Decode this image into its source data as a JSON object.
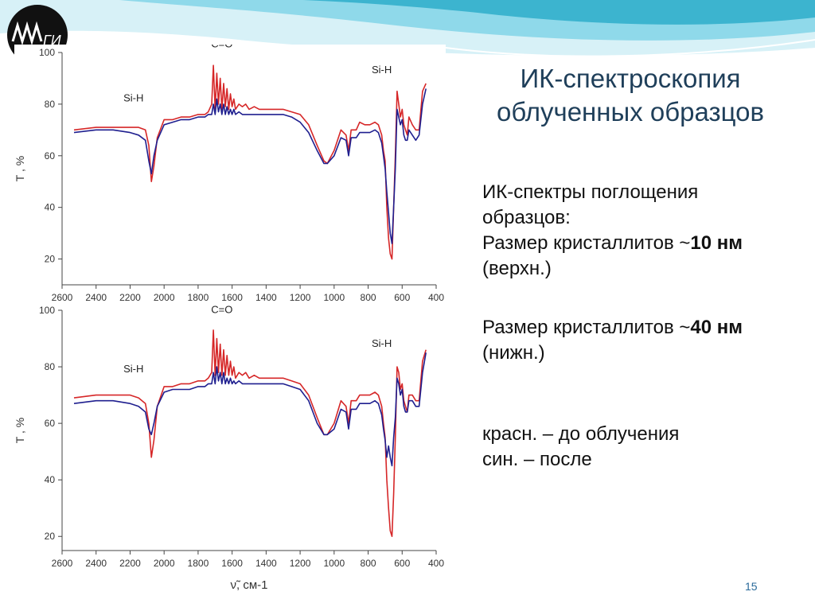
{
  "slide": {
    "title_line1": "ИК-спектроскопия",
    "title_line2": "облученных образцов",
    "text1_line1": "ИК-спектры поглощения",
    "text1_line2": "образцов:",
    "text1_line3_prefix": "Размер кристаллитов ~",
    "text1_line3_bold": "10 нм",
    "text1_line4": "(верхн.)",
    "text2_line1_prefix": "Размер кристаллитов ~",
    "text2_line1_bold": "40 нм",
    "text2_line2": "(нижн.)",
    "legend_red": "красн. – до облучения",
    "legend_blue": "син. – после",
    "page_number": "15",
    "logo_text": "ГИ"
  },
  "colors": {
    "red_series": "#d62728",
    "blue_series": "#1f1f8f",
    "title": "#1f3f5a",
    "wave_light": "#cfeef5",
    "wave_mid": "#7fd3e6",
    "wave_dark": "#2aa6c4"
  },
  "chart_data": [
    {
      "type": "line",
      "ylabel": "T , %",
      "xlabel": "",
      "xlim": [
        2600,
        400
      ],
      "ylim": [
        10,
        100
      ],
      "x_ticks": [
        2600,
        2400,
        2200,
        2000,
        1800,
        1600,
        1400,
        1200,
        1000,
        800,
        600,
        400
      ],
      "y_ticks": [
        20,
        40,
        60,
        80,
        100
      ],
      "annotations": [
        {
          "text": "C=O",
          "x": 1660,
          "y": 102
        },
        {
          "text": "Si-H",
          "x": 2180,
          "y": 81
        },
        {
          "text": "Si-H",
          "x": 720,
          "y": 92
        }
      ],
      "series": [
        {
          "color": "red",
          "x": [
            2530,
            2400,
            2300,
            2200,
            2150,
            2110,
            2090,
            2075,
            2060,
            2040,
            2000,
            1950,
            1900,
            1850,
            1800,
            1760,
            1740,
            1720,
            1710,
            1700,
            1690,
            1680,
            1670,
            1660,
            1650,
            1640,
            1630,
            1620,
            1610,
            1600,
            1590,
            1580,
            1560,
            1540,
            1520,
            1500,
            1470,
            1440,
            1400,
            1350,
            1300,
            1250,
            1200,
            1150,
            1100,
            1060,
            1040,
            1000,
            960,
            930,
            915,
            900,
            870,
            850,
            820,
            790,
            760,
            740,
            720,
            710,
            700,
            690,
            680,
            670,
            660,
            650,
            640,
            630,
            620,
            610,
            600,
            590,
            580,
            570,
            560,
            540,
            520,
            500,
            480,
            460
          ],
          "y": [
            70,
            71,
            71,
            71,
            71,
            70,
            64,
            50,
            56,
            67,
            74,
            74,
            75,
            75,
            76,
            76,
            77,
            80,
            95,
            78,
            92,
            80,
            90,
            78,
            88,
            79,
            86,
            78,
            84,
            79,
            82,
            78,
            80,
            79,
            80,
            78,
            79,
            78,
            78,
            78,
            78,
            77,
            76,
            72,
            64,
            58,
            57,
            62,
            70,
            68,
            62,
            70,
            70,
            73,
            72,
            72,
            73,
            72,
            68,
            62,
            58,
            40,
            28,
            22,
            20,
            40,
            60,
            85,
            80,
            75,
            78,
            72,
            70,
            68,
            75,
            72,
            70,
            70,
            85,
            88
          ]
        },
        {
          "color": "blue",
          "x": [
            2530,
            2400,
            2300,
            2200,
            2150,
            2110,
            2090,
            2075,
            2060,
            2040,
            2000,
            1950,
            1900,
            1850,
            1800,
            1760,
            1740,
            1720,
            1710,
            1700,
            1690,
            1680,
            1670,
            1660,
            1650,
            1640,
            1630,
            1620,
            1610,
            1600,
            1590,
            1580,
            1560,
            1540,
            1520,
            1500,
            1470,
            1440,
            1400,
            1350,
            1300,
            1250,
            1200,
            1150,
            1100,
            1060,
            1040,
            1000,
            960,
            930,
            915,
            900,
            870,
            850,
            820,
            790,
            760,
            740,
            720,
            710,
            700,
            690,
            680,
            670,
            660,
            650,
            640,
            630,
            620,
            610,
            600,
            590,
            580,
            570,
            560,
            540,
            520,
            500,
            480,
            460
          ],
          "y": [
            69,
            70,
            70,
            69,
            68,
            66,
            58,
            53,
            60,
            66,
            72,
            73,
            74,
            74,
            75,
            75,
            76,
            76,
            80,
            76,
            82,
            77,
            80,
            76,
            80,
            76,
            79,
            76,
            78,
            76,
            78,
            76,
            77,
            76,
            76,
            76,
            76,
            76,
            76,
            76,
            76,
            75,
            73,
            69,
            62,
            57,
            57,
            60,
            67,
            66,
            60,
            67,
            67,
            69,
            69,
            69,
            70,
            69,
            65,
            60,
            55,
            46,
            38,
            30,
            26,
            40,
            55,
            78,
            75,
            72,
            74,
            68,
            66,
            66,
            70,
            68,
            66,
            68,
            80,
            86
          ]
        }
      ]
    },
    {
      "type": "line",
      "ylabel": "T , %",
      "xlabel": "ν̃, см-1",
      "xlim": [
        2600,
        400
      ],
      "ylim": [
        15,
        100
      ],
      "x_ticks": [
        2600,
        2400,
        2200,
        2000,
        1800,
        1600,
        1400,
        1200,
        1000,
        800,
        600,
        400
      ],
      "y_ticks": [
        20,
        40,
        60,
        80,
        100
      ],
      "annotations": [
        {
          "text": "C=O",
          "x": 1660,
          "y": 99
        },
        {
          "text": "Si-H",
          "x": 2180,
          "y": 78
        },
        {
          "text": "Si-H",
          "x": 720,
          "y": 87
        }
      ],
      "series": [
        {
          "color": "red",
          "x": [
            2530,
            2400,
            2300,
            2200,
            2150,
            2110,
            2090,
            2075,
            2060,
            2040,
            2000,
            1950,
            1900,
            1850,
            1800,
            1760,
            1740,
            1720,
            1710,
            1700,
            1690,
            1680,
            1670,
            1660,
            1650,
            1640,
            1630,
            1620,
            1610,
            1600,
            1590,
            1580,
            1560,
            1540,
            1520,
            1500,
            1470,
            1440,
            1400,
            1350,
            1300,
            1250,
            1200,
            1150,
            1100,
            1060,
            1040,
            1000,
            960,
            930,
            915,
            900,
            870,
            850,
            820,
            790,
            760,
            740,
            720,
            710,
            700,
            690,
            680,
            670,
            660,
            650,
            640,
            630,
            620,
            610,
            600,
            590,
            580,
            570,
            560,
            540,
            520,
            500,
            480,
            460
          ],
          "y": [
            69,
            70,
            70,
            70,
            69,
            67,
            60,
            48,
            54,
            66,
            73,
            73,
            74,
            74,
            75,
            75,
            76,
            78,
            93,
            77,
            90,
            78,
            88,
            77,
            86,
            77,
            84,
            77,
            82,
            77,
            80,
            76,
            78,
            77,
            78,
            76,
            77,
            76,
            76,
            76,
            76,
            75,
            74,
            70,
            62,
            56,
            56,
            60,
            68,
            66,
            60,
            68,
            68,
            70,
            70,
            70,
            71,
            70,
            66,
            60,
            55,
            40,
            30,
            22,
            20,
            35,
            55,
            80,
            78,
            72,
            74,
            68,
            66,
            64,
            70,
            70,
            68,
            68,
            82,
            86
          ]
        },
        {
          "color": "blue",
          "x": [
            2530,
            2400,
            2300,
            2200,
            2150,
            2110,
            2090,
            2075,
            2060,
            2040,
            2000,
            1950,
            1900,
            1850,
            1800,
            1760,
            1740,
            1720,
            1710,
            1700,
            1690,
            1680,
            1670,
            1660,
            1650,
            1640,
            1630,
            1620,
            1610,
            1600,
            1590,
            1580,
            1560,
            1540,
            1520,
            1500,
            1470,
            1440,
            1400,
            1350,
            1300,
            1250,
            1200,
            1150,
            1100,
            1060,
            1040,
            1000,
            960,
            930,
            915,
            900,
            870,
            850,
            820,
            790,
            760,
            740,
            720,
            710,
            700,
            690,
            680,
            670,
            660,
            650,
            640,
            630,
            620,
            610,
            600,
            590,
            580,
            570,
            560,
            540,
            520,
            500,
            480,
            460
          ],
          "y": [
            67,
            68,
            68,
            67,
            66,
            64,
            58,
            56,
            60,
            66,
            71,
            72,
            72,
            72,
            73,
            73,
            74,
            74,
            78,
            74,
            80,
            75,
            78,
            74,
            78,
            74,
            76,
            74,
            76,
            74,
            75,
            74,
            75,
            74,
            74,
            74,
            74,
            74,
            74,
            74,
            74,
            73,
            72,
            68,
            60,
            56,
            56,
            58,
            65,
            64,
            58,
            65,
            65,
            67,
            67,
            67,
            68,
            67,
            63,
            58,
            54,
            48,
            52,
            48,
            45,
            55,
            62,
            76,
            74,
            70,
            72,
            66,
            64,
            64,
            68,
            68,
            66,
            66,
            78,
            85
          ]
        }
      ]
    }
  ]
}
